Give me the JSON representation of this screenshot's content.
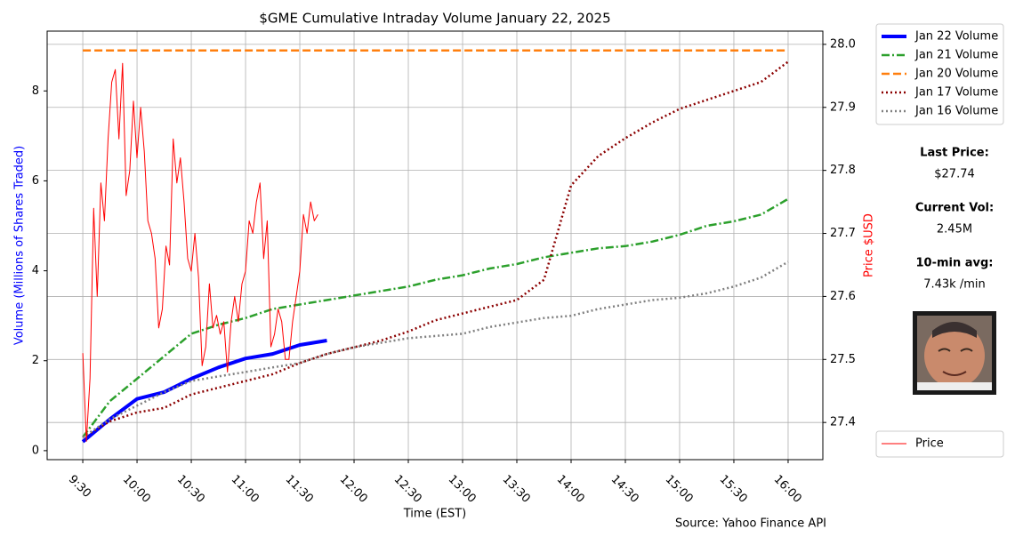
{
  "chart_data": {
    "type": "line",
    "title": "$GME Cumulative Intraday Volume January 22, 2025",
    "xlabel": "Time (EST)",
    "ylabel": "Volume (Millions of Shares Traded)",
    "y2label": "Price $USD",
    "source": "Source: Yahoo Finance API",
    "grid": true,
    "x": [
      570,
      585,
      600,
      615,
      630,
      645,
      660,
      675,
      690,
      705,
      720,
      735,
      750,
      765,
      780,
      795,
      810,
      825,
      840,
      855,
      870,
      885,
      900,
      915,
      930,
      945,
      960
    ],
    "xlim": [
      550.3,
      979.2
    ],
    "xticks": [
      {
        "value": 570,
        "label": "9:30"
      },
      {
        "value": 600,
        "label": "10:00"
      },
      {
        "value": 630,
        "label": "10:30"
      },
      {
        "value": 660,
        "label": "11:00"
      },
      {
        "value": 690,
        "label": "11:30"
      },
      {
        "value": 720,
        "label": "12:00"
      },
      {
        "value": 750,
        "label": "12:30"
      },
      {
        "value": 780,
        "label": "13:00"
      },
      {
        "value": 810,
        "label": "13:30"
      },
      {
        "value": 840,
        "label": "14:00"
      },
      {
        "value": 870,
        "label": "14:30"
      },
      {
        "value": 900,
        "label": "15:00"
      },
      {
        "value": 930,
        "label": "15:30"
      },
      {
        "value": 960,
        "label": "16:00"
      }
    ],
    "ylim": [
      -0.2,
      9.33
    ],
    "yticks": [
      0,
      2,
      4,
      6,
      8
    ],
    "y2lim": [
      27.341,
      28.021
    ],
    "y2ticks": [
      27.4,
      27.5,
      27.6,
      27.7,
      27.8,
      27.9,
      {
        "value": 28,
        "label": "28.0"
      }
    ],
    "series": [
      {
        "name": "Jan 22 Volume",
        "color": "#0000ff",
        "linestyle": "solid",
        "linewidth": 4,
        "values": [
          0.2,
          0.7,
          1.15,
          1.3,
          1.6,
          1.85,
          2.05,
          2.15,
          2.35,
          2.45,
          null,
          null,
          null,
          null,
          null,
          null,
          null,
          null,
          null,
          null,
          null,
          null,
          null,
          null,
          null,
          null,
          null
        ]
      },
      {
        "name": "Jan 21 Volume",
        "color": "#2ca02c",
        "linestyle": "dashdot",
        "linewidth": 2.5,
        "values": [
          0.3,
          1.1,
          1.6,
          2.1,
          2.6,
          2.8,
          2.95,
          3.15,
          3.25,
          3.35,
          3.45,
          3.55,
          3.65,
          3.8,
          3.9,
          4.05,
          4.15,
          4.3,
          4.4,
          4.5,
          4.55,
          4.65,
          4.8,
          5.0,
          5.1,
          5.25,
          5.6
        ]
      },
      {
        "name": "Jan 20 Volume",
        "color": "#ff7f0e",
        "linestyle": "dashed",
        "linewidth": 2.5,
        "values": [
          8.9,
          8.9,
          8.9,
          8.9,
          8.9,
          8.9,
          8.9,
          8.9,
          8.9,
          8.9,
          8.9,
          8.9,
          8.9,
          8.9,
          8.9,
          8.9,
          8.9,
          8.9,
          8.9,
          8.9,
          8.9,
          8.9,
          8.9,
          8.9,
          8.9,
          8.9,
          8.9
        ]
      },
      {
        "name": "Jan 17 Volume",
        "color": "#8b0000",
        "linestyle": "dotted",
        "linewidth": 2.5,
        "values": [
          0.3,
          0.65,
          0.85,
          0.95,
          1.25,
          1.4,
          1.55,
          1.7,
          1.95,
          2.15,
          2.3,
          2.45,
          2.65,
          2.9,
          3.05,
          3.2,
          3.35,
          3.8,
          5.9,
          6.55,
          6.95,
          7.3,
          7.6,
          7.8,
          8.0,
          8.2,
          8.65
        ]
      },
      {
        "name": "Jan 16 Volume",
        "color": "#808080",
        "linestyle": "dotted",
        "linewidth": 2.5,
        "values": [
          0.3,
          0.7,
          1.0,
          1.3,
          1.55,
          1.65,
          1.75,
          1.85,
          1.95,
          2.15,
          2.3,
          2.4,
          2.5,
          2.55,
          2.6,
          2.75,
          2.85,
          2.95,
          3.0,
          3.15,
          3.25,
          3.35,
          3.4,
          3.5,
          3.65,
          3.85,
          4.2
        ]
      },
      {
        "name": "Price",
        "color": "#ff0000",
        "linestyle": "solid",
        "linewidth": 1,
        "axis": "y2",
        "x": [
          570,
          572,
          574,
          576,
          578,
          580,
          582,
          584,
          586,
          588,
          590,
          592,
          594,
          596,
          598,
          600,
          602,
          604,
          606,
          608,
          610,
          612,
          614,
          616,
          618,
          620,
          622,
          624,
          626,
          628,
          630,
          632,
          634,
          636,
          638,
          640,
          642,
          644,
          646,
          648,
          650,
          652,
          654,
          656,
          658,
          660,
          662,
          664,
          666,
          668,
          670,
          672,
          674,
          676,
          678,
          680,
          682,
          684,
          686,
          688,
          690,
          692,
          694,
          696,
          698,
          700
        ],
        "values": [
          27.51,
          27.37,
          27.47,
          27.74,
          27.6,
          27.78,
          27.72,
          27.85,
          27.94,
          27.96,
          27.85,
          27.97,
          27.76,
          27.8,
          27.91,
          27.82,
          27.9,
          27.83,
          27.72,
          27.7,
          27.66,
          27.55,
          27.58,
          27.68,
          27.65,
          27.85,
          27.78,
          27.82,
          27.75,
          27.66,
          27.64,
          27.7,
          27.63,
          27.49,
          27.52,
          27.62,
          27.55,
          27.57,
          27.54,
          27.56,
          27.48,
          27.56,
          27.6,
          27.56,
          27.62,
          27.64,
          27.72,
          27.7,
          27.75,
          27.78,
          27.66,
          27.72,
          27.52,
          27.54,
          27.58,
          27.56,
          27.5,
          27.5,
          27.56,
          27.6,
          27.64,
          27.73,
          27.7,
          27.75,
          27.72,
          27.73
        ]
      }
    ]
  },
  "side_panel": {
    "items": [
      {
        "label": "Last Price:",
        "value": "$27.74"
      },
      {
        "label": "Current Vol:",
        "value": "2.45M"
      },
      {
        "label": "10-min avg:",
        "value": "7.43k /min"
      }
    ]
  }
}
